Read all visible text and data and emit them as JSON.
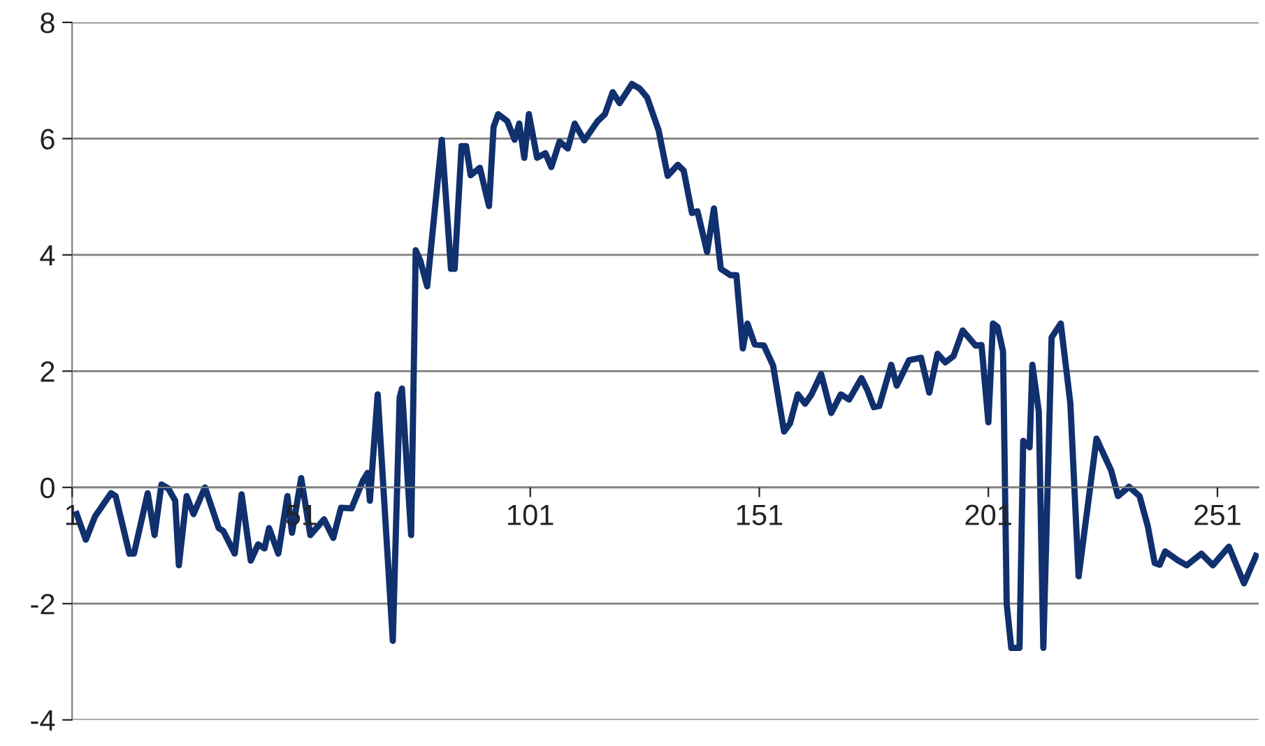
{
  "chart_data": {
    "type": "line",
    "xlim": [
      1,
      260
    ],
    "xticks": [
      1,
      51,
      101,
      151,
      201,
      251
    ],
    "ylim": [
      -4,
      8
    ],
    "yticks": [
      -4,
      -2,
      0,
      2,
      4,
      6,
      8
    ],
    "grid": "y",
    "legend": false,
    "marker": "none",
    "line_style": "solid",
    "series": [
      {
        "color": "#10306e",
        "x": [
          2,
          4,
          6,
          9.5,
          10.5,
          13.5,
          14.5,
          17.5,
          19,
          20.5,
          22,
          23.5,
          24.3,
          26,
          27.5,
          30,
          33,
          34,
          36.5,
          38,
          40,
          41.6,
          43,
          44,
          46,
          48,
          49,
          51,
          53,
          56,
          58,
          59.7,
          62,
          64.5,
          65.5,
          66,
          67.7,
          71,
          72.5,
          73,
          75,
          76,
          77,
          78.5,
          81.7,
          83.7,
          84.5,
          86,
          87,
          88,
          90,
          92,
          93,
          94,
          96,
          97.6,
          98.6,
          99.7,
          100.7,
          102.5,
          104.3,
          105.6,
          107.4,
          109.2,
          110.7,
          112.8,
          115.7,
          117.3,
          119,
          120.5,
          123.2,
          124.9,
          126.5,
          129,
          131,
          133.2,
          134.5,
          136.3,
          137.5,
          139.6,
          141.1,
          142.6,
          144.7,
          146,
          147.4,
          148.4,
          150,
          152,
          154,
          156.4,
          157.7,
          159.4,
          161,
          162.4,
          164.5,
          166.7,
          168.8,
          170.6,
          173.3,
          174.6,
          176,
          177.2,
          179.8,
          181,
          183.7,
          186.3,
          188.1,
          189.9,
          191.6,
          193.4,
          195.4,
          198.2,
          199.5,
          201,
          202,
          203,
          204.2,
          205,
          206,
          207.8,
          208.6,
          210,
          210.6,
          212,
          213,
          214.8,
          216.8,
          218.9,
          220.7,
          224.6,
          227.8,
          229.3,
          231.7,
          234,
          235.8,
          237.3,
          238.4,
          239.6,
          242.3,
          244.3,
          247.5,
          250,
          253.5,
          256.8,
          259.4
        ],
        "values": [
          -0.46,
          -0.9,
          -0.5,
          -0.1,
          -0.15,
          -1.14,
          -1.14,
          -0.1,
          -0.82,
          0.05,
          -0.02,
          -0.23,
          -1.34,
          -0.15,
          -0.46,
          0,
          -0.7,
          -0.75,
          -1.14,
          -0.12,
          -1.26,
          -0.98,
          -1.05,
          -0.7,
          -1.14,
          -0.15,
          -0.78,
          0.16,
          -0.82,
          -0.55,
          -0.87,
          -0.35,
          -0.36,
          0.12,
          0.25,
          -0.23,
          1.6,
          -2.64,
          1.55,
          1.7,
          -0.82,
          4.08,
          3.9,
          3.46,
          5.98,
          3.76,
          3.76,
          5.87,
          5.87,
          5.37,
          5.5,
          4.84,
          6.2,
          6.42,
          6.3,
          5.98,
          6.26,
          5.67,
          6.42,
          5.67,
          5.75,
          5.51,
          5.95,
          5.83,
          6.26,
          5.97,
          6.3,
          6.42,
          6.8,
          6.61,
          6.94,
          6.86,
          6.71,
          6.15,
          5.36,
          5.55,
          5.45,
          4.72,
          4.75,
          4.05,
          4.8,
          3.76,
          3.65,
          3.65,
          2.39,
          2.82,
          2.46,
          2.44,
          2.1,
          0.96,
          1.1,
          1.6,
          1.44,
          1.6,
          1.95,
          1.28,
          1.6,
          1.51,
          1.88,
          1.67,
          1.38,
          1.4,
          2.11,
          1.75,
          2.19,
          2.23,
          1.63,
          2.3,
          2.15,
          2.26,
          2.7,
          2.44,
          2.45,
          1.12,
          2.82,
          2.76,
          2.34,
          -2.01,
          -2.76,
          -2.76,
          0.8,
          0.69,
          2.11,
          1.31,
          -2.76,
          2.58,
          2.82,
          1.44,
          -1.53,
          0.84,
          0.29,
          -0.15,
          0.01,
          -0.15,
          -0.67,
          -1.3,
          -1.33,
          -1.1,
          -1.25,
          -1.34,
          -1.14,
          -1.34,
          -1.02,
          -1.65,
          -1.18
        ]
      }
    ]
  }
}
